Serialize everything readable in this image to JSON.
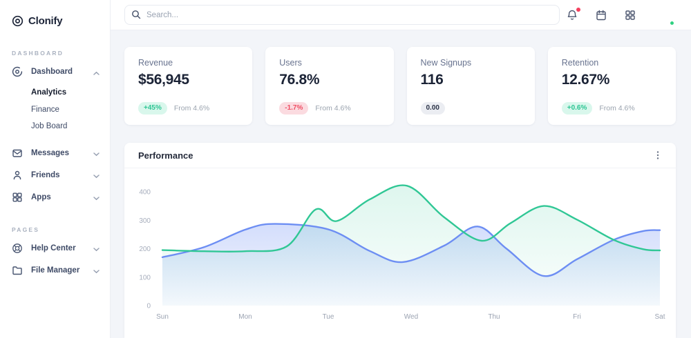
{
  "brand": {
    "name": "Clonify"
  },
  "topbar": {
    "search_placeholder": "Search...",
    "icons": [
      "bell",
      "calendar",
      "app-grid",
      "avatar"
    ],
    "notification_dot_color": "#f43f5e",
    "online_dot_color": "#2fd181"
  },
  "sidebar": {
    "sections": [
      {
        "label": "DASHBOARD",
        "items": [
          {
            "label": "Dashboard",
            "icon": "disc-icon",
            "expanded": true,
            "children": [
              "Analytics",
              "Finance",
              "Job Board"
            ],
            "active_child": "Analytics"
          },
          {
            "label": "Messages",
            "icon": "mail-icon"
          },
          {
            "label": "Friends",
            "icon": "user-icon"
          },
          {
            "label": "Apps",
            "icon": "grid-icon"
          }
        ]
      },
      {
        "label": "PAGES",
        "items": [
          {
            "label": "Help Center",
            "icon": "lifebuoy-icon"
          },
          {
            "label": "File Manager",
            "icon": "folder-icon"
          }
        ]
      }
    ]
  },
  "stats": [
    {
      "title": "Revenue",
      "value": "$56,945",
      "badge": "+45%",
      "badge_type": "positive",
      "note": "From 4.6%"
    },
    {
      "title": "Users",
      "value": "76.8%",
      "badge": "-1.7%",
      "badge_type": "negative",
      "note": "From 4.6%"
    },
    {
      "title": "New Signups",
      "value": "116",
      "badge": "0.00",
      "badge_type": "neutral",
      "note": ""
    },
    {
      "title": "Retention",
      "value": "12.67%",
      "badge": "+0.6%",
      "badge_type": "positive",
      "note": "From 4.6%"
    }
  ],
  "chart_card": {
    "title": "Performance"
  },
  "chart_data": {
    "type": "area",
    "title": "Performance",
    "x_categories": [
      "Sun",
      "Mon",
      "Tue",
      "Wed",
      "Thu",
      "Fri",
      "Sat"
    ],
    "ylim": [
      0,
      400
    ],
    "yticks": [
      0,
      100,
      200,
      300,
      400
    ],
    "grid": false,
    "legend": "none",
    "series": [
      {
        "name": "blue-series",
        "color": "#6d8ef3",
        "points": [
          [
            0,
            170
          ],
          [
            0.5,
            205
          ],
          [
            1,
            267
          ],
          [
            1.35,
            287
          ],
          [
            2,
            268
          ],
          [
            2.5,
            192
          ],
          [
            2.9,
            153
          ],
          [
            3.4,
            211
          ],
          [
            3.8,
            278
          ],
          [
            4.15,
            200
          ],
          [
            4.6,
            104
          ],
          [
            5,
            163
          ],
          [
            5.45,
            232
          ],
          [
            5.8,
            262
          ],
          [
            6,
            265
          ]
        ]
      },
      {
        "name": "green-series",
        "color": "#30c795",
        "points": [
          [
            0,
            195
          ],
          [
            0.5,
            191
          ],
          [
            1,
            191
          ],
          [
            1.5,
            208
          ],
          [
            1.85,
            338
          ],
          [
            2.1,
            297
          ],
          [
            2.5,
            373
          ],
          [
            2.95,
            421
          ],
          [
            3.4,
            310
          ],
          [
            3.85,
            228
          ],
          [
            4.2,
            290
          ],
          [
            4.6,
            350
          ],
          [
            5,
            302
          ],
          [
            5.45,
            230
          ],
          [
            5.8,
            198
          ],
          [
            6,
            194
          ]
        ]
      }
    ]
  },
  "colors": {
    "page_bg": "#f3f5f9",
    "card_bg": "#ffffff",
    "accent_green": "#30c795",
    "accent_blue": "#6d8ef3",
    "positive_bg": "#d9f7ec",
    "positive_text": "#2dc593",
    "negative_bg": "#fbdbe0",
    "negative_text": "#ef4e63",
    "neutral_bg": "#ebedf2",
    "neutral_text": "#2a3246",
    "text_dark": "#1b2336",
    "text_muted": "#9aa3ae",
    "tick_label": "#a6adbc"
  }
}
